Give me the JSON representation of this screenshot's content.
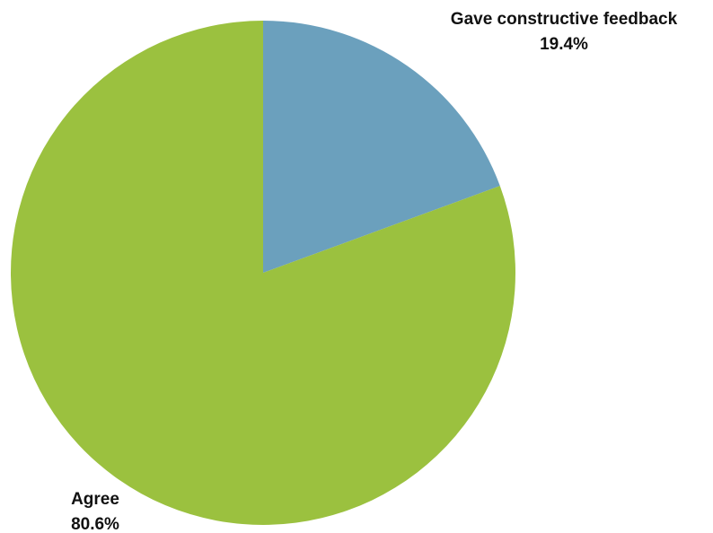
{
  "chart_data": {
    "type": "pie",
    "slices": [
      {
        "label": "Gave constructive feedback",
        "value": 19.4,
        "value_label": "19.4%",
        "color": "#6ba0bd"
      },
      {
        "label": "Agree",
        "value": 80.6,
        "value_label": "80.6%",
        "color": "#9bc13f"
      }
    ],
    "start_angle": "12 o'clock",
    "direction": "clockwise",
    "legend": "none",
    "labels_placement": "outside slices"
  }
}
